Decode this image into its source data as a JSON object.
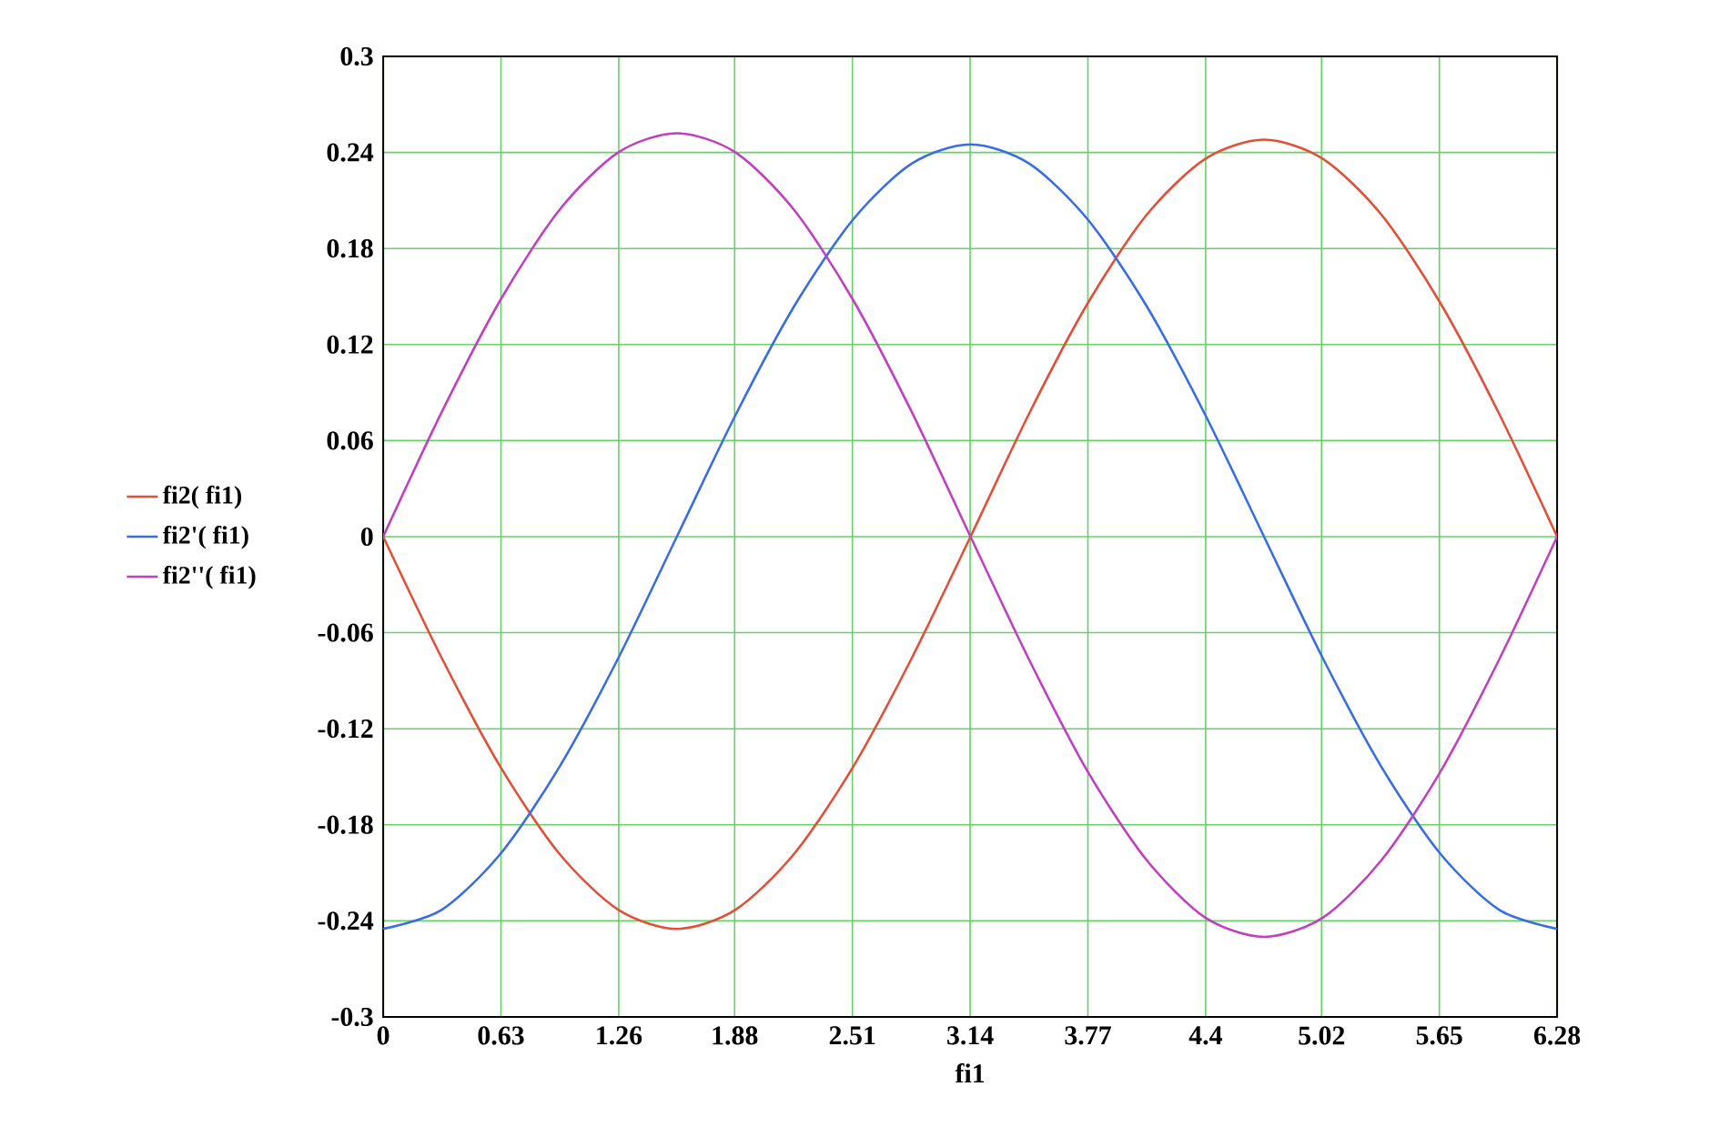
{
  "chart_data": {
    "type": "line",
    "xlabel": "fi1",
    "x": [
      0,
      0.314,
      0.628,
      0.942,
      1.257,
      1.571,
      1.885,
      2.199,
      2.513,
      2.827,
      3.142,
      3.456,
      3.77,
      4.084,
      4.398,
      4.712,
      5.027,
      5.341,
      5.655,
      5.969,
      6.28
    ],
    "series": [
      {
        "name": "fi2( fi1)",
        "color": "#e0503a",
        "values": [
          0,
          -0.076,
          -0.144,
          -0.198,
          -0.233,
          -0.245,
          -0.233,
          -0.198,
          -0.144,
          -0.076,
          0,
          0.077,
          0.146,
          0.201,
          0.236,
          0.248,
          0.236,
          0.201,
          0.146,
          0.077,
          0
        ]
      },
      {
        "name": "fi2'( fi1)",
        "color": "#3a6ee0",
        "values": [
          -0.245,
          -0.233,
          -0.198,
          -0.144,
          -0.076,
          0,
          0.076,
          0.144,
          0.198,
          0.233,
          0.245,
          0.233,
          0.198,
          0.144,
          0.076,
          0,
          -0.076,
          -0.144,
          -0.198,
          -0.233,
          -0.245
        ]
      },
      {
        "name": "fi2''( fi1)",
        "color": "#c040c0",
        "values": [
          0,
          0.078,
          0.148,
          0.204,
          0.24,
          0.252,
          0.24,
          0.204,
          0.148,
          0.078,
          0,
          -0.077,
          -0.147,
          -0.202,
          -0.238,
          -0.25,
          -0.238,
          -0.202,
          -0.147,
          -0.077,
          0
        ]
      }
    ],
    "xlim": [
      0,
      6.28
    ],
    "xticks": [
      0,
      0.63,
      1.26,
      1.88,
      2.51,
      3.14,
      3.77,
      4.4,
      5.02,
      5.65,
      6.28
    ],
    "ylim": [
      -0.3,
      0.3
    ],
    "yticks": [
      -0.3,
      -0.24,
      -0.18,
      -0.12,
      -0.06,
      0,
      0.06,
      0.12,
      0.18,
      0.24,
      0.3
    ],
    "grid": true,
    "legend": "left",
    "marker": "none",
    "line_style": "solid"
  }
}
